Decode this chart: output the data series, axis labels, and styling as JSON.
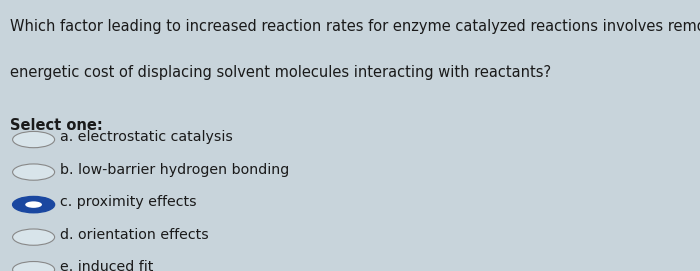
{
  "background_color": "#c8d4db",
  "question_text_line1": "Which factor leading to increased reaction rates for enzyme catalyzed reactions involves removing the",
  "question_text_line2": "energetic cost of displacing solvent molecules interacting with reactants?",
  "select_one_label": "Select one:",
  "options": [
    {
      "label": "a. electrostatic catalysis",
      "selected": false
    },
    {
      "label": "b. low-barrier hydrogen bonding",
      "selected": false
    },
    {
      "label": "c. proximity effects",
      "selected": true
    },
    {
      "label": "d. orientation effects",
      "selected": false
    },
    {
      "label": "e. induced fit",
      "selected": false
    }
  ],
  "text_color": "#1a1a1a",
  "circle_edge_color": "#888888",
  "circle_inner_color": "#d8e4ea",
  "selected_fill_color": "#1a47a0",
  "selected_dot_color": "#ffffff",
  "font_size_question": 10.5,
  "font_size_options": 10.2,
  "font_size_select": 10.5,
  "figwidth": 7.0,
  "figheight": 2.71,
  "dpi": 100
}
